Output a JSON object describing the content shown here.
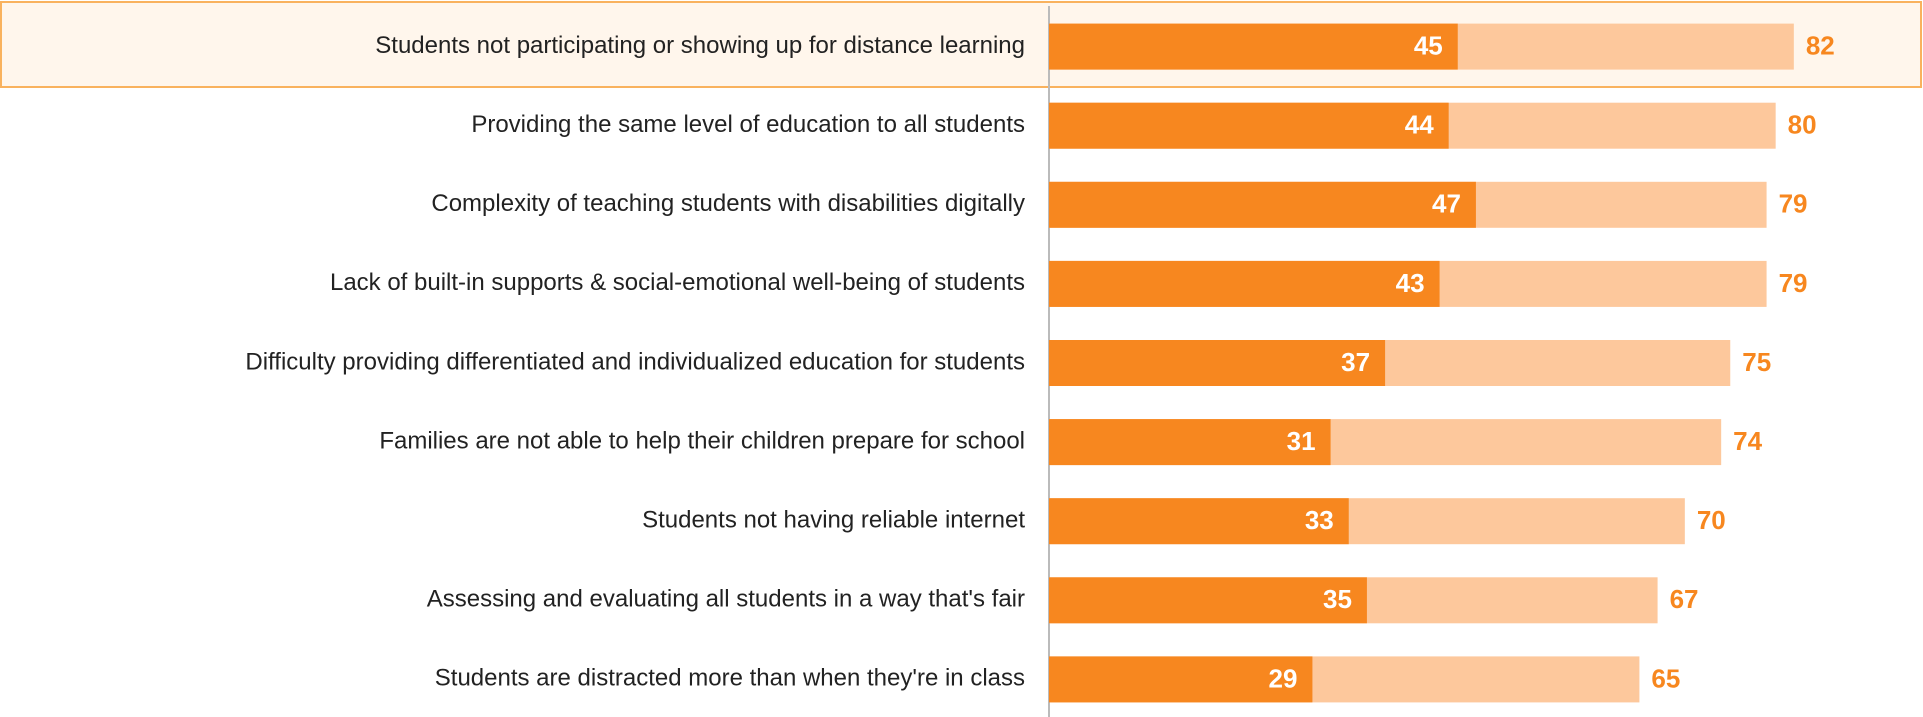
{
  "chart_data": {
    "type": "overlap-hbar",
    "categories": [
      "Students not participating or showing up for distance learning",
      "Providing the same level of education to all students",
      "Complexity of teaching students with disabilities digitally",
      "Lack of built-in supports & social-emotional well-being of students",
      "Difficulty providing differentiated and individualized education for students",
      "Families are not able to help their children prepare for school",
      "Students not having reliable internet",
      "Assessing and evaluating all students in a way that's fair",
      "Students are distracted more than when they're in class"
    ],
    "series": [
      {
        "color": "#fdc89c",
        "label_color": "#f7871f",
        "values": [
          82,
          80,
          79,
          79,
          75,
          74,
          70,
          67,
          65
        ]
      },
      {
        "color": "#f7871f",
        "label_color": "#ffffff",
        "values": [
          45,
          44,
          47,
          43,
          37,
          31,
          33,
          35,
          29
        ]
      }
    ],
    "xlim": [
      0,
      96
    ]
  }
}
